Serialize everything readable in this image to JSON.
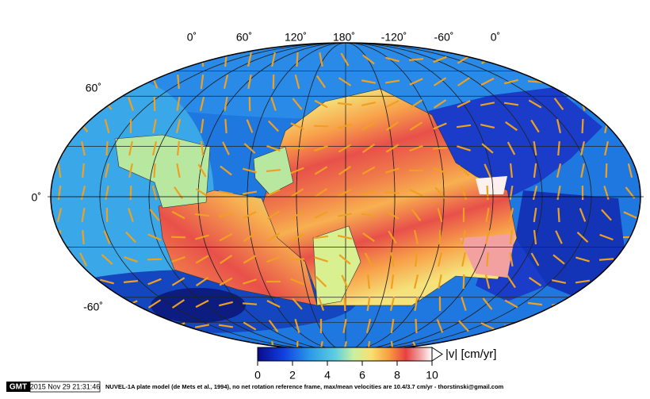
{
  "map": {
    "lon_labels": [
      "0˚",
      "60˚",
      "120˚",
      "180˚",
      "-120˚",
      "-60˚",
      "0˚"
    ],
    "lat_labels": [
      "60˚",
      "0˚",
      "-60˚"
    ],
    "colorbar": {
      "label": "|v| [cm/yr]",
      "range": [
        0,
        10
      ],
      "ticks": [
        0,
        2,
        4,
        6,
        8,
        10
      ]
    }
  },
  "footer": {
    "logo": "GMT",
    "timestamp": "2015 Nov 29 21:31:46",
    "caption": "NUVEL-1A plate model (de Mets et al., 1994), no net rotation reference frame, max/mean velocities are 10.4/3.7 cm/yr - thorstinski@gmail.com"
  }
}
